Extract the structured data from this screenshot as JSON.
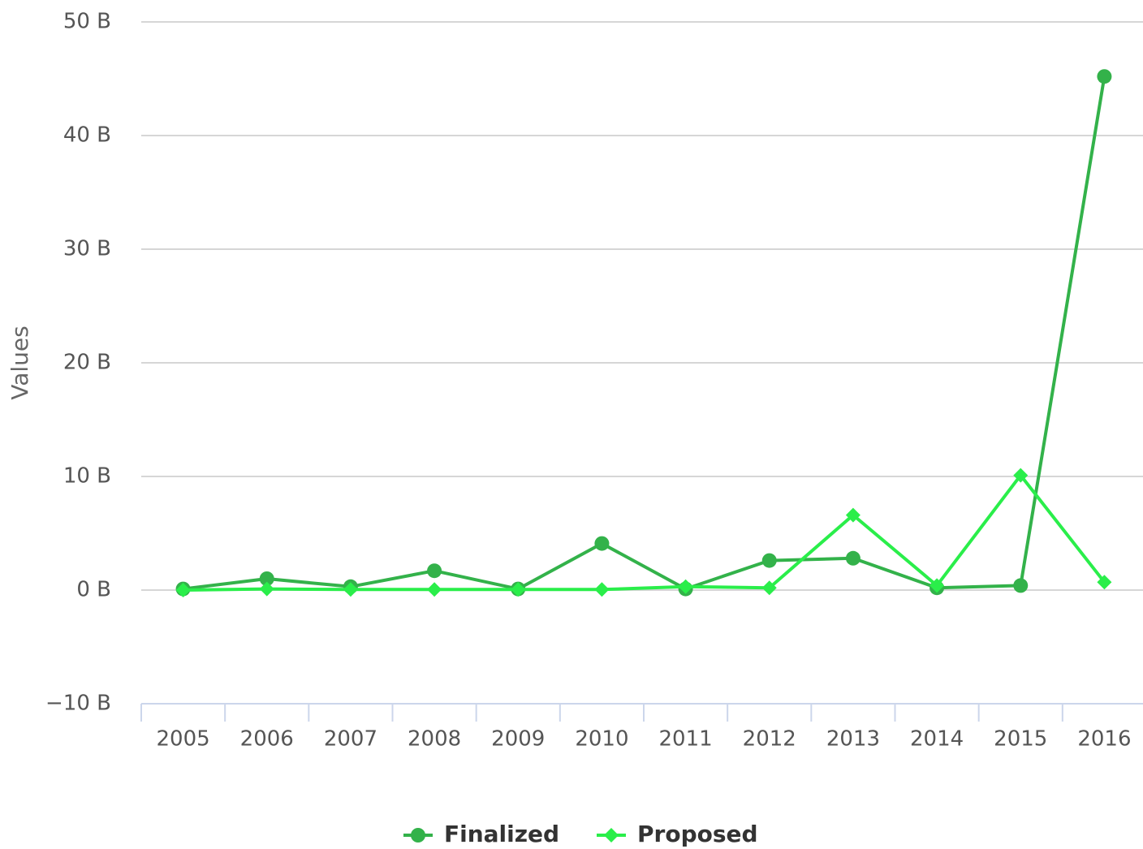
{
  "chart_data": {
    "type": "line",
    "y_axis_label": "Values",
    "categories": [
      "2005",
      "2006",
      "2007",
      "2008",
      "2009",
      "2010",
      "2011",
      "2012",
      "2013",
      "2014",
      "2015",
      "2016"
    ],
    "series": [
      {
        "name": "Finalized",
        "color": "#33b24a",
        "marker": "circle",
        "values": [
          0.1,
          1.0,
          0.3,
          1.7,
          0.1,
          4.1,
          0.1,
          2.6,
          2.8,
          0.2,
          0.4,
          45.2
        ]
      },
      {
        "name": "Proposed",
        "color": "#2aee4a",
        "marker": "diamond",
        "values": [
          0.0,
          0.1,
          0.05,
          0.05,
          0.05,
          0.05,
          0.3,
          0.2,
          6.6,
          0.4,
          10.1,
          0.7
        ]
      }
    ],
    "ylim": [
      -10,
      50
    ],
    "yticks": [
      {
        "value": -10,
        "label": "−10 B"
      },
      {
        "value": 0,
        "label": "0 B"
      },
      {
        "value": 10,
        "label": "10 B"
      },
      {
        "value": 20,
        "label": "20 B"
      },
      {
        "value": 30,
        "label": "30 B"
      },
      {
        "value": 40,
        "label": "40 B"
      },
      {
        "value": 50,
        "label": "50 B"
      }
    ],
    "grid": true,
    "legend": "bottom"
  }
}
